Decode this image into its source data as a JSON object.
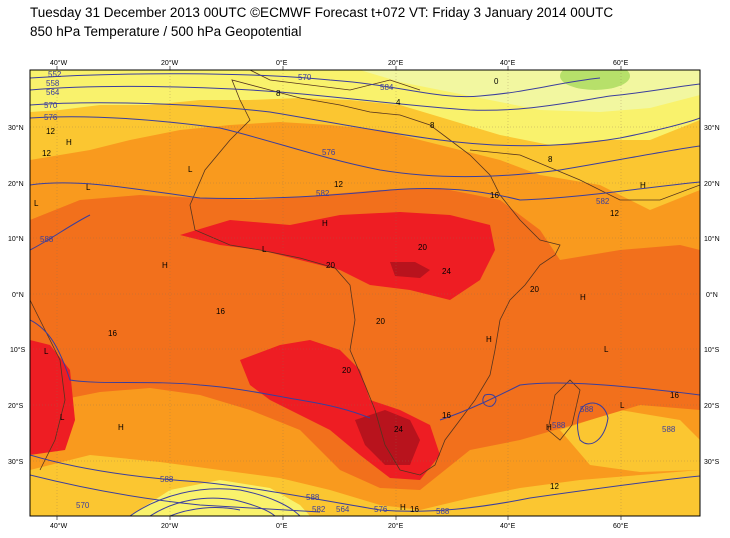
{
  "header": {
    "line1": "Tuesday 31 December 2013 00UTC ©ECMWF Forecast t+072 VT: Friday 3 January 2014 00UTC",
    "line2": "850 hPa Temperature / 500 hPa Geopotential"
  },
  "axes": {
    "lon_labels_top": [
      "40°W",
      "20°W",
      "0°E",
      "20°E",
      "40°E",
      "60°E"
    ],
    "lon_labels_bottom": [
      "40°W",
      "20°W",
      "0°E",
      "20°E",
      "40°E",
      "60°E"
    ],
    "lat_labels_left": [
      "30°N",
      "20°N",
      "10°N",
      "0°N",
      "10°S",
      "20°S",
      "30°S"
    ],
    "lat_labels_right": [
      "30°N",
      "20°N",
      "10°N",
      "0°N",
      "10°S",
      "20°S",
      "30°S"
    ]
  },
  "map_extent": {
    "lon_min": -44,
    "lon_max": 74,
    "lat_min": -40,
    "lat_max": 40
  },
  "colors": {
    "ocean_frame": "#ffffff",
    "band_lt4": "#f2f7a0",
    "band_4_8": "#f9f26c",
    "band_8_12": "#fbc631",
    "band_12_16": "#f99a1e",
    "band_16_20": "#f2701c",
    "band_20_24": "#ee1d23",
    "band_ge24": "#b8131d",
    "cold": "#b7e06a",
    "geopotential": "#3b3e9d",
    "coast": "#55341f"
  },
  "temperature_labels": [
    "0",
    "4",
    "8",
    "8",
    "8",
    "12",
    "12",
    "12",
    "12",
    "12",
    "16",
    "16",
    "16",
    "16",
    "16",
    "16",
    "20",
    "20",
    "20",
    "20",
    "20",
    "24",
    "24"
  ],
  "geopotential_labels": [
    "552",
    "558",
    "564",
    "570",
    "576",
    "582",
    "584",
    "588",
    "570",
    "576",
    "582",
    "588",
    "588",
    "588",
    "588",
    "588",
    "588",
    "582",
    "576",
    "570",
    "564"
  ],
  "pressure_centres": [
    "H",
    "H",
    "H",
    "H",
    "H",
    "H",
    "H",
    "H",
    "H",
    "L",
    "L",
    "L",
    "L",
    "L",
    "L",
    "L",
    "L"
  ]
}
